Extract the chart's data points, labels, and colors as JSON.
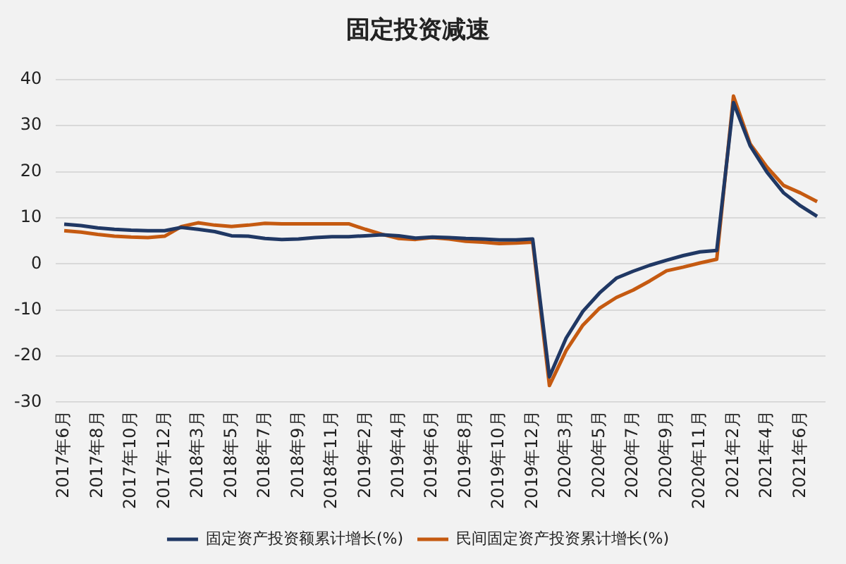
{
  "chart_data": {
    "type": "line",
    "title": "固定投资减速",
    "categories": [
      "2017年6月",
      null,
      "2017年8月",
      null,
      "2017年10月",
      null,
      "2017年12月",
      null,
      "2018年3月",
      null,
      "2018年5月",
      null,
      "2018年7月",
      null,
      "2018年9月",
      null,
      "2018年11月",
      null,
      "2019年2月",
      null,
      "2019年4月",
      null,
      "2019年6月",
      null,
      "2019年8月",
      null,
      "2019年10月",
      null,
      "2019年12月",
      null,
      "2020年3月",
      null,
      "2020年5月",
      null,
      "2020年7月",
      null,
      "2020年9月",
      null,
      "2020年11月",
      null,
      "2021年2月",
      null,
      "2021年4月",
      null,
      "2021年6月",
      null
    ],
    "series": [
      {
        "name": "固定资产投资额累计增长(%)",
        "color": "#203864",
        "values": [
          8.6,
          8.3,
          7.8,
          7.5,
          7.3,
          7.2,
          7.2,
          7.9,
          7.5,
          7.0,
          6.1,
          6.0,
          5.5,
          5.3,
          5.4,
          5.7,
          5.9,
          5.9,
          6.1,
          6.3,
          6.1,
          5.6,
          5.8,
          5.7,
          5.5,
          5.4,
          5.2,
          5.2,
          5.4,
          -24.5,
          -16.1,
          -10.3,
          -6.3,
          -3.1,
          -1.6,
          -0.3,
          0.8,
          1.8,
          2.6,
          2.9,
          35.0,
          25.6,
          19.9,
          15.4,
          12.6,
          10.3
        ]
      },
      {
        "name": "民间固定资产投资累计增长(%)",
        "color": "#c55a11",
        "values": [
          7.2,
          6.9,
          6.4,
          6.0,
          5.8,
          5.7,
          6.0,
          8.1,
          8.9,
          8.4,
          8.1,
          8.4,
          8.8,
          8.7,
          8.7,
          8.7,
          8.7,
          8.7,
          7.5,
          6.4,
          5.5,
          5.3,
          5.7,
          5.4,
          4.9,
          4.7,
          4.4,
          4.5,
          4.7,
          -26.4,
          -18.8,
          -13.3,
          -9.6,
          -7.3,
          -5.7,
          -3.7,
          -1.5,
          -0.7,
          0.2,
          1.0,
          36.4,
          26.0,
          21.0,
          17.0,
          15.4,
          13.5
        ]
      }
    ],
    "ylim": [
      -30,
      40
    ],
    "yticks": [
      -30,
      -20,
      -10,
      0,
      10,
      20,
      30,
      40
    ],
    "grid": "y",
    "legend": "bottom",
    "marker": "none",
    "line_style": "solid"
  }
}
